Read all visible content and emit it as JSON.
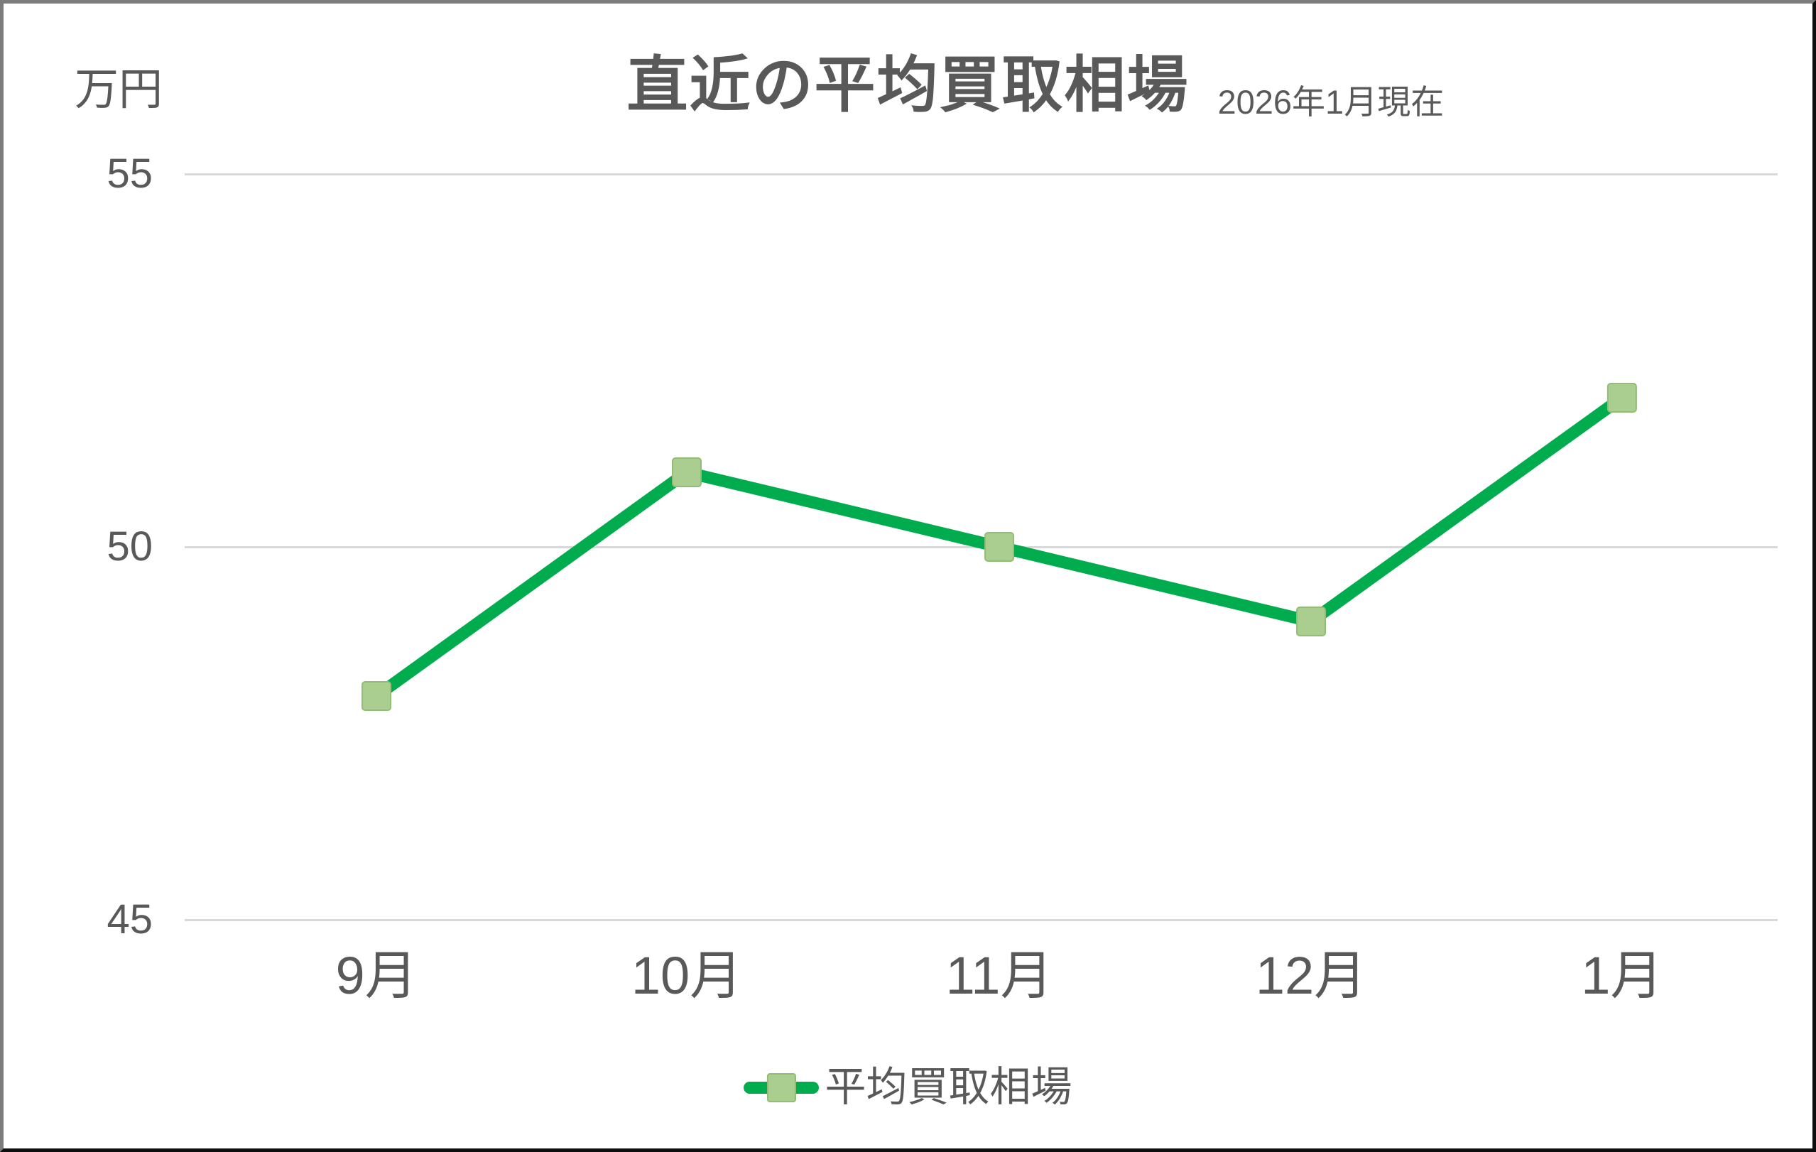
{
  "chart_data": {
    "type": "line",
    "title": "直近の平均買取相場",
    "subtitle": "2026年1月現在",
    "y_unit_label": "万円",
    "categories": [
      "9月",
      "10月",
      "11月",
      "12月",
      "1月"
    ],
    "series": [
      {
        "name": "平均買取相場",
        "values": [
          48,
          51,
          50,
          49,
          52
        ]
      }
    ],
    "ylim": [
      45,
      55
    ],
    "yticks": [
      55,
      50,
      45
    ],
    "grid": "horizontal-only",
    "legend_position": "bottom-center",
    "colors": {
      "line": "#00AC4E",
      "marker_fill": "#A9CE8F",
      "marker_border": "#93BD74",
      "gridline": "#D9D9D9",
      "text": "#595959"
    }
  },
  "legend": {
    "label": "平均買取相場"
  }
}
